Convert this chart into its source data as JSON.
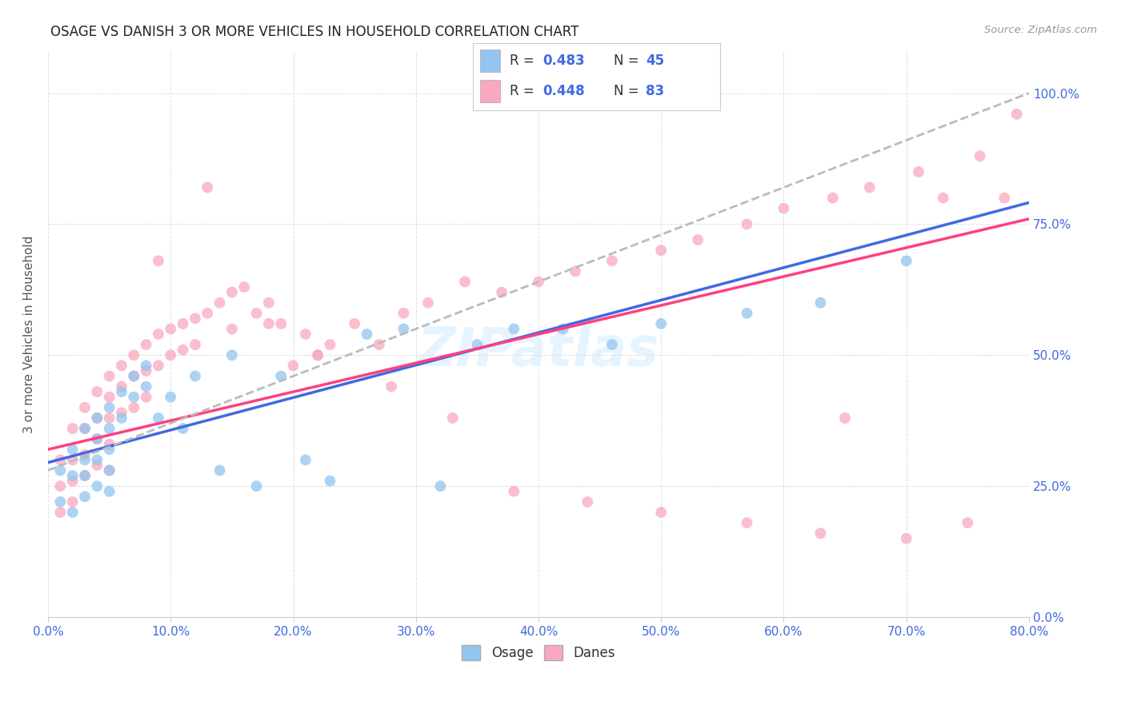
{
  "title": "OSAGE VS DANISH 3 OR MORE VEHICLES IN HOUSEHOLD CORRELATION CHART",
  "source": "Source: ZipAtlas.com",
  "ylabel": "3 or more Vehicles in Household",
  "osage_R": 0.483,
  "osage_N": 45,
  "danes_R": 0.448,
  "danes_N": 83,
  "osage_color": "#92C5F0",
  "danes_color": "#F9A8C0",
  "osage_line_color": "#4169E1",
  "danes_line_color": "#FF4080",
  "dashed_line_color": "#BBBBBB",
  "background_color": "#FFFFFF",
  "grid_color": "#DDDDDD",
  "title_color": "#222222",
  "source_color": "#999999",
  "axis_label_color": "#555555",
  "tick_label_color": "#4169E1",
  "xlim": [
    0.0,
    0.8
  ],
  "ylim": [
    0.0,
    1.08
  ],
  "x_ticks": [
    0.0,
    0.1,
    0.2,
    0.3,
    0.4,
    0.5,
    0.6,
    0.7,
    0.8
  ],
  "y_ticks": [
    0.0,
    0.25,
    0.5,
    0.75,
    1.0
  ],
  "osage_line_intercept": 0.295,
  "osage_line_slope": 0.62,
  "danes_line_intercept": 0.32,
  "danes_line_slope": 0.55,
  "dashed_line_intercept": 0.28,
  "dashed_line_slope": 0.9,
  "osage_x": [
    0.01,
    0.01,
    0.02,
    0.02,
    0.02,
    0.03,
    0.03,
    0.03,
    0.03,
    0.04,
    0.04,
    0.04,
    0.04,
    0.05,
    0.05,
    0.05,
    0.05,
    0.05,
    0.06,
    0.06,
    0.07,
    0.07,
    0.08,
    0.08,
    0.09,
    0.1,
    0.11,
    0.12,
    0.14,
    0.15,
    0.17,
    0.19,
    0.21,
    0.23,
    0.26,
    0.29,
    0.32,
    0.35,
    0.38,
    0.42,
    0.46,
    0.5,
    0.57,
    0.63,
    0.7
  ],
  "osage_y": [
    0.28,
    0.22,
    0.32,
    0.27,
    0.2,
    0.36,
    0.3,
    0.27,
    0.23,
    0.38,
    0.34,
    0.3,
    0.25,
    0.4,
    0.36,
    0.32,
    0.28,
    0.24,
    0.43,
    0.38,
    0.46,
    0.42,
    0.48,
    0.44,
    0.38,
    0.42,
    0.36,
    0.46,
    0.28,
    0.5,
    0.25,
    0.46,
    0.3,
    0.26,
    0.54,
    0.55,
    0.25,
    0.52,
    0.55,
    0.55,
    0.52,
    0.56,
    0.58,
    0.6,
    0.68
  ],
  "danes_x": [
    0.01,
    0.01,
    0.01,
    0.02,
    0.02,
    0.02,
    0.02,
    0.03,
    0.03,
    0.03,
    0.03,
    0.04,
    0.04,
    0.04,
    0.04,
    0.05,
    0.05,
    0.05,
    0.05,
    0.05,
    0.06,
    0.06,
    0.06,
    0.07,
    0.07,
    0.07,
    0.08,
    0.08,
    0.08,
    0.09,
    0.09,
    0.1,
    0.1,
    0.11,
    0.11,
    0.12,
    0.12,
    0.13,
    0.14,
    0.15,
    0.15,
    0.16,
    0.17,
    0.18,
    0.19,
    0.2,
    0.21,
    0.22,
    0.23,
    0.25,
    0.27,
    0.29,
    0.31,
    0.34,
    0.37,
    0.4,
    0.43,
    0.46,
    0.5,
    0.53,
    0.57,
    0.6,
    0.64,
    0.67,
    0.71,
    0.73,
    0.76,
    0.78,
    0.09,
    0.13,
    0.18,
    0.22,
    0.28,
    0.33,
    0.38,
    0.44,
    0.5,
    0.57,
    0.63,
    0.65,
    0.7,
    0.75,
    0.79
  ],
  "danes_y": [
    0.3,
    0.25,
    0.2,
    0.36,
    0.3,
    0.26,
    0.22,
    0.4,
    0.36,
    0.31,
    0.27,
    0.43,
    0.38,
    0.34,
    0.29,
    0.46,
    0.42,
    0.38,
    0.33,
    0.28,
    0.48,
    0.44,
    0.39,
    0.5,
    0.46,
    0.4,
    0.52,
    0.47,
    0.42,
    0.54,
    0.48,
    0.55,
    0.5,
    0.56,
    0.51,
    0.57,
    0.52,
    0.58,
    0.6,
    0.62,
    0.55,
    0.63,
    0.58,
    0.6,
    0.56,
    0.48,
    0.54,
    0.5,
    0.52,
    0.56,
    0.52,
    0.58,
    0.6,
    0.64,
    0.62,
    0.64,
    0.66,
    0.68,
    0.7,
    0.72,
    0.75,
    0.78,
    0.8,
    0.82,
    0.85,
    0.8,
    0.88,
    0.8,
    0.68,
    0.82,
    0.56,
    0.5,
    0.44,
    0.38,
    0.24,
    0.22,
    0.2,
    0.18,
    0.16,
    0.38,
    0.15,
    0.18,
    0.96
  ]
}
